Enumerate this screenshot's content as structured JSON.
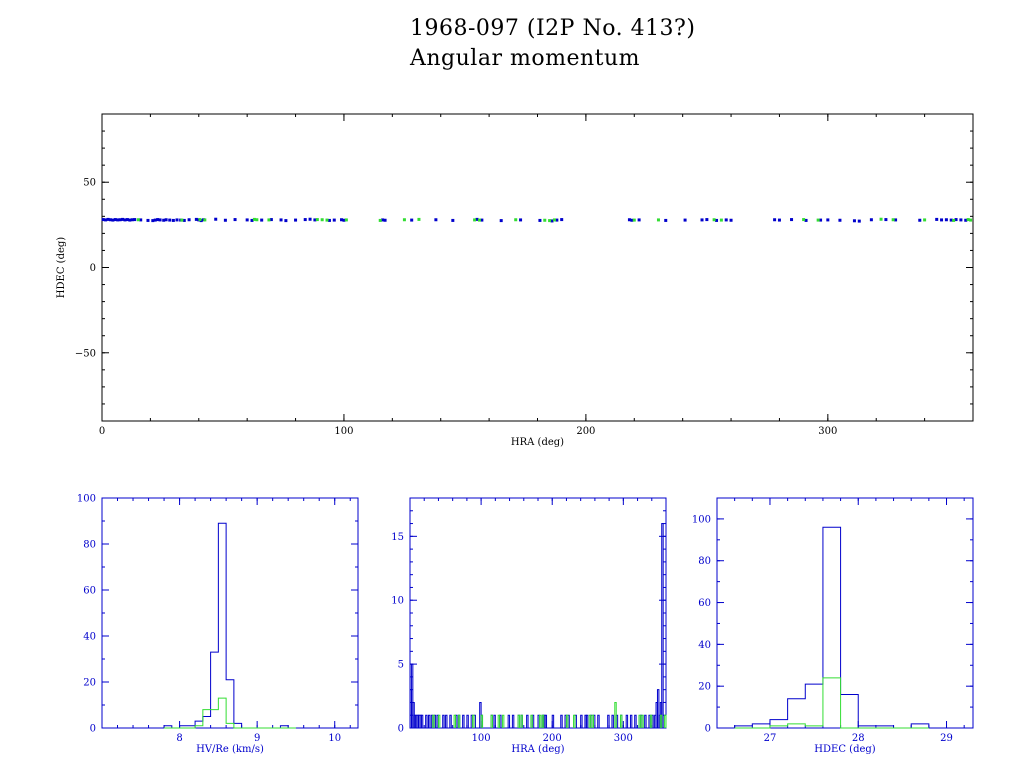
{
  "title_line1": "1968-097 (I2P No. 413?)",
  "title_line2": "Angular momentum",
  "colors": {
    "frame": "#000000",
    "blue": "#0000cc",
    "green": "#33dd33",
    "axis_label": "#000000",
    "hist_axis": "#0000cc"
  },
  "chart_data": [
    {
      "type": "scatter",
      "xlabel": "HRA (deg)",
      "ylabel": "HDEC (deg)",
      "xlim": [
        0,
        360
      ],
      "ylim": [
        -90,
        90
      ],
      "xticks": [
        0,
        100,
        200,
        300
      ],
      "yticks": [
        -50,
        0,
        50
      ],
      "series": [
        {
          "color": "blue",
          "points": [
            [
              0.5,
              28.1
            ],
            [
              1.5,
              27.9
            ],
            [
              2.5,
              28.2
            ],
            [
              3.5,
              28.0
            ],
            [
              4.5,
              27.8
            ],
            [
              5.5,
              28.1
            ],
            [
              6.5,
              27.9
            ],
            [
              7.5,
              28.0
            ],
            [
              8.5,
              28.2
            ],
            [
              9.5,
              27.9
            ],
            [
              10.5,
              28.1
            ],
            [
              11.5,
              27.8
            ],
            [
              12.5,
              28.0
            ],
            [
              13.5,
              28.1
            ],
            [
              16,
              27.9
            ],
            [
              19,
              27.6
            ],
            [
              21,
              27.5
            ],
            [
              22,
              27.8
            ],
            [
              23,
              28.1
            ],
            [
              24,
              27.9
            ],
            [
              25.5,
              27.7
            ],
            [
              26.5,
              28.0
            ],
            [
              28,
              27.8
            ],
            [
              29.5,
              27.6
            ],
            [
              31,
              27.9
            ],
            [
              32.5,
              27.8
            ],
            [
              34,
              27.6
            ],
            [
              36,
              28.0
            ],
            [
              39,
              28.2
            ],
            [
              40,
              27.9
            ],
            [
              41,
              27.5
            ],
            [
              42,
              28.0
            ],
            [
              47,
              28.3
            ],
            [
              51,
              27.7
            ],
            [
              55,
              28.1
            ],
            [
              60,
              27.9
            ],
            [
              62,
              27.6
            ],
            [
              66,
              27.8
            ],
            [
              70,
              28.1
            ],
            [
              74,
              27.9
            ],
            [
              76,
              27.5
            ],
            [
              80,
              27.8
            ],
            [
              84,
              28.1
            ],
            [
              86,
              28.3
            ],
            [
              88,
              27.9
            ],
            [
              94,
              27.6
            ],
            [
              96,
              27.8
            ],
            [
              99,
              28.0
            ],
            [
              100,
              27.7
            ],
            [
              116,
              27.9
            ],
            [
              117,
              27.7
            ],
            [
              128,
              27.8
            ],
            [
              138,
              28.0
            ],
            [
              145,
              27.6
            ],
            [
              155,
              28.2
            ],
            [
              157,
              27.8
            ],
            [
              165,
              27.5
            ],
            [
              173,
              27.9
            ],
            [
              181,
              27.6
            ],
            [
              186,
              27.3
            ],
            [
              188,
              27.8
            ],
            [
              190,
              28.1
            ],
            [
              218,
              28.0
            ],
            [
              219,
              27.7
            ],
            [
              222,
              27.9
            ],
            [
              233,
              27.6
            ],
            [
              241,
              27.8
            ],
            [
              248,
              27.9
            ],
            [
              250,
              28.1
            ],
            [
              254,
              27.6
            ],
            [
              258,
              27.9
            ],
            [
              260,
              27.7
            ],
            [
              278,
              28.0
            ],
            [
              280,
              27.8
            ],
            [
              285,
              28.1
            ],
            [
              291,
              27.6
            ],
            [
              297,
              27.8
            ],
            [
              300,
              27.9
            ],
            [
              305,
              27.7
            ],
            [
              311,
              27.4
            ],
            [
              313,
              27.2
            ],
            [
              318,
              28.0
            ],
            [
              324,
              28.1
            ],
            [
              328,
              27.9
            ],
            [
              338,
              27.7
            ],
            [
              345,
              28.2
            ],
            [
              347,
              27.9
            ],
            [
              349,
              28.0
            ],
            [
              351,
              27.8
            ],
            [
              353,
              28.1
            ],
            [
              355,
              27.9
            ],
            [
              357,
              27.7
            ]
          ]
        },
        {
          "color": "green",
          "points": [
            [
              15,
              28.0
            ],
            [
              33,
              27.8
            ],
            [
              40.5,
              28.1
            ],
            [
              42.5,
              27.9
            ],
            [
              63,
              28.2
            ],
            [
              64,
              28.0
            ],
            [
              69,
              27.9
            ],
            [
              89,
              28.1
            ],
            [
              91,
              28.0
            ],
            [
              93,
              27.8
            ],
            [
              101,
              27.9
            ],
            [
              115,
              27.6
            ],
            [
              125,
              28.0
            ],
            [
              131,
              28.2
            ],
            [
              154,
              27.9
            ],
            [
              156,
              27.8
            ],
            [
              171,
              28.0
            ],
            [
              183,
              27.7
            ],
            [
              185,
              27.5
            ],
            [
              187,
              27.9
            ],
            [
              220,
              27.8
            ],
            [
              230,
              27.9
            ],
            [
              253,
              28.0
            ],
            [
              256,
              27.8
            ],
            [
              290,
              28.1
            ],
            [
              296,
              27.8
            ],
            [
              322,
              28.3
            ],
            [
              327,
              28.0
            ],
            [
              340,
              27.9
            ],
            [
              352,
              27.6
            ],
            [
              358,
              28.1
            ],
            [
              359,
              27.8
            ]
          ]
        }
      ]
    },
    {
      "type": "histogram",
      "xlabel": "HV/Re (km/s)",
      "xlim": [
        7,
        10.3
      ],
      "ylim": [
        0,
        100
      ],
      "xticks": [
        8,
        9,
        10
      ],
      "yticks": [
        0,
        20,
        40,
        60,
        80,
        100
      ],
      "bin_edges": [
        7.8,
        7.9,
        8.0,
        8.1,
        8.2,
        8.3,
        8.4,
        8.5,
        8.6,
        8.7,
        8.8,
        8.9,
        9.0,
        9.1,
        9.2,
        9.3,
        9.4,
        9.5
      ],
      "series": [
        {
          "color": "blue",
          "counts": [
            1,
            0,
            1,
            1,
            3,
            5,
            33,
            89,
            21,
            2,
            0,
            0,
            0,
            0,
            0,
            1,
            0
          ]
        },
        {
          "color": "green",
          "counts": [
            0,
            0,
            0,
            0,
            1,
            8,
            8,
            13,
            2,
            0,
            0,
            0,
            0,
            0,
            0,
            0,
            0
          ]
        }
      ]
    },
    {
      "type": "histogram",
      "xlabel": "HRA (deg)",
      "xlim": [
        0,
        360
      ],
      "ylim": [
        0,
        18
      ],
      "xticks": [
        100,
        200,
        300
      ],
      "yticks": [
        0,
        5,
        10,
        15
      ],
      "bin_width": 2,
      "series": [
        {
          "color": "blue",
          "bars": [
            [
              0,
              3
            ],
            [
              2,
              5
            ],
            [
              4,
              2
            ],
            [
              6,
              1
            ],
            [
              8,
              1
            ],
            [
              10,
              1
            ],
            [
              12,
              1
            ],
            [
              14,
              1
            ],
            [
              16,
              1
            ],
            [
              22,
              1
            ],
            [
              26,
              1
            ],
            [
              30,
              1
            ],
            [
              34,
              1
            ],
            [
              38,
              1
            ],
            [
              46,
              1
            ],
            [
              50,
              1
            ],
            [
              56,
              1
            ],
            [
              64,
              1
            ],
            [
              68,
              1
            ],
            [
              74,
              1
            ],
            [
              80,
              1
            ],
            [
              86,
              1
            ],
            [
              90,
              1
            ],
            [
              98,
              2
            ],
            [
              100,
              1
            ],
            [
              114,
              1
            ],
            [
              118,
              1
            ],
            [
              126,
              1
            ],
            [
              138,
              1
            ],
            [
              144,
              1
            ],
            [
              152,
              1
            ],
            [
              156,
              1
            ],
            [
              164,
              1
            ],
            [
              172,
              1
            ],
            [
              180,
              1
            ],
            [
              186,
              1
            ],
            [
              188,
              1
            ],
            [
              190,
              1
            ],
            [
              200,
              1
            ],
            [
              212,
              1
            ],
            [
              218,
              1
            ],
            [
              222,
              1
            ],
            [
              232,
              1
            ],
            [
              240,
              1
            ],
            [
              246,
              1
            ],
            [
              248,
              1
            ],
            [
              254,
              1
            ],
            [
              258,
              1
            ],
            [
              264,
              1
            ],
            [
              278,
              1
            ],
            [
              284,
              1
            ],
            [
              290,
              1
            ],
            [
              296,
              1
            ],
            [
              304,
              1
            ],
            [
              310,
              1
            ],
            [
              316,
              1
            ],
            [
              324,
              1
            ],
            [
              330,
              1
            ],
            [
              336,
              1
            ],
            [
              340,
              1
            ],
            [
              344,
              1
            ],
            [
              346,
              2
            ],
            [
              348,
              3
            ],
            [
              350,
              1
            ],
            [
              352,
              2
            ],
            [
              354,
              16
            ]
          ]
        },
        {
          "color": "green",
          "bars": [
            [
              32,
              1
            ],
            [
              40,
              1
            ],
            [
              62,
              1
            ],
            [
              68,
              1
            ],
            [
              88,
              1
            ],
            [
              100,
              1
            ],
            [
              114,
              1
            ],
            [
              124,
              1
            ],
            [
              130,
              1
            ],
            [
              152,
              1
            ],
            [
              156,
              1
            ],
            [
              170,
              1
            ],
            [
              182,
              1
            ],
            [
              186,
              1
            ],
            [
              220,
              1
            ],
            [
              230,
              1
            ],
            [
              252,
              1
            ],
            [
              256,
              1
            ],
            [
              288,
              2
            ],
            [
              296,
              1
            ],
            [
              322,
              1
            ],
            [
              326,
              1
            ],
            [
              338,
              1
            ],
            [
              352,
              1
            ],
            [
              358,
              1
            ]
          ]
        }
      ]
    },
    {
      "type": "histogram",
      "xlabel": "HDEC (deg)",
      "xlim": [
        26.4,
        29.3
      ],
      "ylim": [
        0,
        110
      ],
      "xticks": [
        27,
        28,
        29
      ],
      "yticks": [
        0,
        20,
        40,
        60,
        80,
        100
      ],
      "bin_edges": [
        26.6,
        26.8,
        27.0,
        27.2,
        27.4,
        27.6,
        27.8,
        28.0,
        28.2,
        28.4,
        28.6,
        28.8
      ],
      "series": [
        {
          "color": "blue",
          "counts": [
            1,
            2,
            4,
            14,
            21,
            96,
            16,
            1,
            1,
            0,
            2
          ]
        },
        {
          "color": "green",
          "counts": [
            0,
            0,
            1,
            2,
            1,
            24,
            0,
            0,
            0,
            0,
            0
          ]
        }
      ]
    }
  ]
}
